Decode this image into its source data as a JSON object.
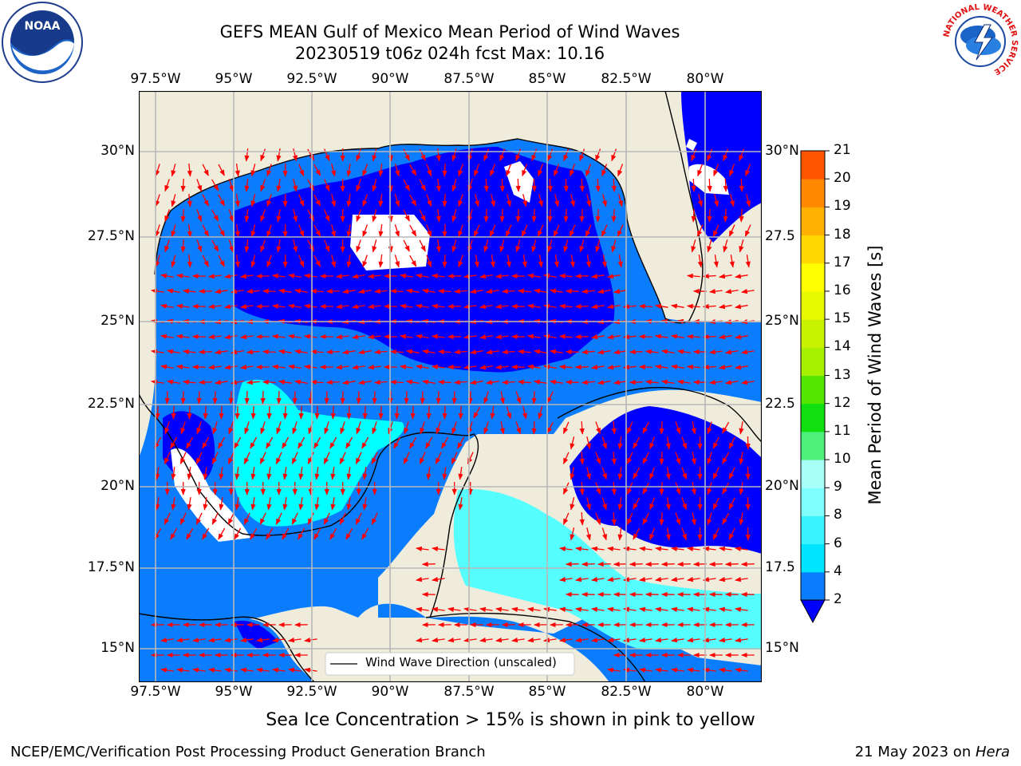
{
  "title_line1": "GEFS MEAN Gulf of Mexico Mean Period of Wind Waves",
  "title_line2": "20230519 t06z 024h fcst   Max: 10.16",
  "lon_labels": [
    "97.5°W",
    "95°W",
    "92.5°W",
    "90°W",
    "87.5°W",
    "85°W",
    "82.5°W",
    "80°W"
  ],
  "lat_labels_left": [
    "30°N",
    "27.5°N",
    "25°N",
    "22.5°N",
    "20°N",
    "17.5°N",
    "15°N"
  ],
  "lat_labels_right": [
    "30°N",
    "27.5",
    "25°N",
    "22.5",
    "20°N",
    "17.5",
    "15°N"
  ],
  "legend_label": "Wind Wave Direction (unscaled)",
  "subtitle": "Sea Ice Concentration > 15% is shown in pink to yellow",
  "footer_left": "NCEP/EMC/Verification Post Processing Product Generation Branch",
  "footer_date": "21 May 2023 on ",
  "footer_machine": "Hera",
  "colorbar": {
    "title": "Mean Period of Wind Waves [s]",
    "labels": [
      "2",
      "4",
      "6",
      "8",
      "9",
      "10",
      "11",
      "12",
      "13",
      "14",
      "15",
      "16",
      "17",
      "18",
      "19",
      "20",
      "21"
    ],
    "colors": [
      "#0a7dff",
      "#00e5ff",
      "#3af4ff",
      "#80ffff",
      "#a8fff8",
      "#4df07a",
      "#10e010",
      "#55e600",
      "#a6f000",
      "#c8f200",
      "#e8f800",
      "#ffff00",
      "#ffd800",
      "#ffb000",
      "#ff8800",
      "#ff5500",
      "#ff2a00",
      "#ff0000"
    ],
    "below_color": "#0000ff"
  },
  "logos": {
    "noaa": "NOAA",
    "nws_ring": "NATIONAL WEATHER SERVICE"
  },
  "colors": {
    "land": "#efecdc",
    "deep_blue": "#0000ff",
    "mid_blue": "#0a7dff",
    "cyan": "#00ffff",
    "light_cyan": "#55ffff",
    "arrow": "#ff0000"
  }
}
